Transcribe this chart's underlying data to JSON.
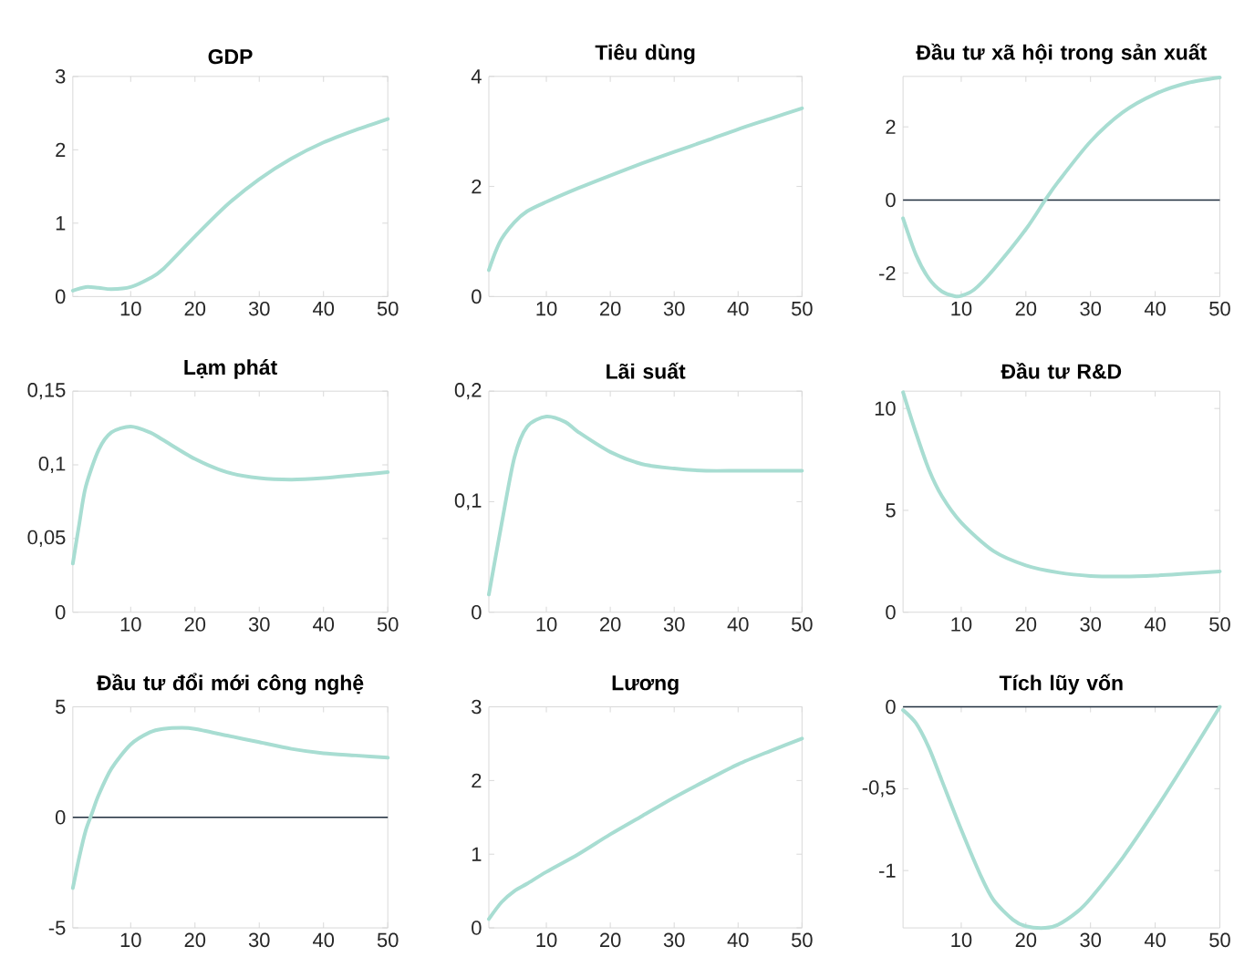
{
  "chart_data": [
    {
      "type": "line",
      "title": "GDP",
      "color": "#a8ddd2",
      "x": [
        1,
        3,
        5,
        7,
        10,
        13,
        15,
        20,
        25,
        30,
        35,
        40,
        45,
        50
      ],
      "values": [
        0.08,
        0.13,
        0.12,
        0.1,
        0.13,
        0.25,
        0.37,
        0.82,
        1.25,
        1.6,
        1.88,
        2.1,
        2.27,
        2.42
      ],
      "xlim": [
        1,
        50
      ],
      "ylim": [
        0,
        3
      ],
      "xticks": [
        10,
        20,
        30,
        40,
        50
      ],
      "yticks": [
        0,
        1,
        2,
        3
      ]
    },
    {
      "type": "line",
      "title": "Tiêu dùng",
      "color": "#a8ddd2",
      "x": [
        1,
        2,
        3,
        5,
        7,
        10,
        15,
        20,
        25,
        30,
        35,
        40,
        45,
        50
      ],
      "values": [
        0.48,
        0.8,
        1.05,
        1.35,
        1.55,
        1.72,
        1.97,
        2.2,
        2.42,
        2.63,
        2.83,
        3.04,
        3.23,
        3.42
      ],
      "xlim": [
        1,
        50
      ],
      "ylim": [
        0,
        4
      ],
      "xticks": [
        10,
        20,
        30,
        40,
        50
      ],
      "yticks": [
        0,
        2,
        4
      ]
    },
    {
      "type": "line",
      "title": "Đầu tư xã hội trong sản xuất",
      "color": "#a8ddd2",
      "x": [
        1,
        3,
        5,
        7,
        9,
        10,
        12,
        15,
        20,
        23,
        25,
        30,
        35,
        40,
        45,
        50
      ],
      "values": [
        -0.5,
        -1.5,
        -2.15,
        -2.5,
        -2.63,
        -2.62,
        -2.45,
        -1.9,
        -0.8,
        0.0,
        0.5,
        1.6,
        2.4,
        2.9,
        3.2,
        3.35
      ],
      "xlim": [
        1,
        50
      ],
      "ylim": [
        -2.64,
        3.38
      ],
      "xticks": [
        10,
        20,
        30,
        40,
        50
      ],
      "yticks": [
        -2,
        0,
        2
      ],
      "ref_lines": [
        {
          "axis": "y",
          "value": 0,
          "color": "#1f2d3d"
        }
      ]
    },
    {
      "type": "line",
      "title": "Lạm phát",
      "color": "#a8ddd2",
      "x": [
        1,
        2,
        3,
        5,
        7,
        10,
        13,
        15,
        20,
        25,
        30,
        35,
        40,
        45,
        50
      ],
      "values": [
        0.033,
        0.06,
        0.085,
        0.11,
        0.122,
        0.126,
        0.122,
        0.117,
        0.104,
        0.095,
        0.091,
        0.09,
        0.091,
        0.093,
        0.095
      ],
      "xlim": [
        1,
        50
      ],
      "ylim": [
        0,
        0.15
      ],
      "xticks": [
        10,
        20,
        30,
        40,
        50
      ],
      "yticks": [
        0,
        {
          "value": 0.05,
          "label": "0,05"
        },
        {
          "value": 0.1,
          "label": "0,1"
        },
        {
          "value": 0.15,
          "label": "0,15"
        }
      ]
    },
    {
      "type": "line",
      "title": "Lãi suất",
      "color": "#a8ddd2",
      "x": [
        1,
        3,
        5,
        7,
        10,
        13,
        15,
        20,
        25,
        30,
        35,
        40,
        45,
        50
      ],
      "values": [
        0.016,
        0.08,
        0.14,
        0.168,
        0.177,
        0.172,
        0.163,
        0.145,
        0.134,
        0.13,
        0.128,
        0.128,
        0.128,
        0.128
      ],
      "xlim": [
        1,
        50
      ],
      "ylim": [
        0,
        0.2
      ],
      "xticks": [
        10,
        20,
        30,
        40,
        50
      ],
      "yticks": [
        0,
        {
          "value": 0.1,
          "label": "0,1"
        },
        {
          "value": 0.2,
          "label": "0,2"
        }
      ]
    },
    {
      "type": "line",
      "title": "Đầu tư R&D",
      "color": "#a8ddd2",
      "x": [
        1,
        3,
        5,
        7,
        10,
        15,
        20,
        25,
        30,
        35,
        40,
        45,
        50
      ],
      "values": [
        10.8,
        8.8,
        7.0,
        5.7,
        4.4,
        3.0,
        2.3,
        1.95,
        1.78,
        1.75,
        1.8,
        1.9,
        2.0
      ],
      "xlim": [
        1,
        50
      ],
      "ylim": [
        0,
        10.85
      ],
      "xticks": [
        10,
        20,
        30,
        40,
        50
      ],
      "yticks": [
        0,
        5,
        10
      ]
    },
    {
      "type": "line",
      "title": "Đầu tư đổi mới công nghệ",
      "color": "#a8ddd2",
      "x": [
        1,
        2,
        3,
        4,
        5,
        7,
        10,
        13,
        15,
        18,
        20,
        25,
        30,
        35,
        40,
        45,
        50
      ],
      "values": [
        -3.2,
        -1.8,
        -0.6,
        0.2,
        1.0,
        2.2,
        3.3,
        3.85,
        4.0,
        4.05,
        4.0,
        3.7,
        3.4,
        3.1,
        2.9,
        2.8,
        2.7
      ],
      "xlim": [
        1,
        50
      ],
      "ylim": [
        -5,
        5
      ],
      "xticks": [
        10,
        20,
        30,
        40,
        50
      ],
      "yticks": [
        -5,
        0,
        5
      ],
      "ref_lines": [
        {
          "axis": "y",
          "value": 0,
          "color": "#1f2d3d"
        }
      ]
    },
    {
      "type": "line",
      "title": "Lương",
      "color": "#a8ddd2",
      "x": [
        1,
        3,
        5,
        7,
        10,
        15,
        20,
        25,
        30,
        35,
        40,
        45,
        50
      ],
      "values": [
        0.12,
        0.35,
        0.5,
        0.6,
        0.76,
        1.0,
        1.27,
        1.52,
        1.77,
        2.0,
        2.22,
        2.4,
        2.57
      ],
      "xlim": [
        1,
        50
      ],
      "ylim": [
        0,
        3
      ],
      "xticks": [
        10,
        20,
        30,
        40,
        50
      ],
      "yticks": [
        0,
        1,
        2,
        3
      ]
    },
    {
      "type": "line",
      "title": "Tích lũy vốn",
      "color": "#a8ddd2",
      "x": [
        1,
        3,
        5,
        7,
        10,
        13,
        15,
        18,
        20,
        23,
        25,
        28,
        30,
        35,
        40,
        45,
        50
      ],
      "values": [
        -0.02,
        -0.1,
        -0.25,
        -0.45,
        -0.75,
        -1.03,
        -1.18,
        -1.3,
        -1.34,
        -1.35,
        -1.33,
        -1.25,
        -1.17,
        -0.92,
        -0.63,
        -0.32,
        0.0
      ],
      "xlim": [
        1,
        50
      ],
      "ylim": [
        -1.35,
        0
      ],
      "xticks": [
        10,
        20,
        30,
        40,
        50
      ],
      "yticks": [
        {
          "value": -1,
          "label": "-1"
        },
        {
          "value": -0.5,
          "label": "-0,5"
        },
        0
      ],
      "ref_lines": [
        {
          "axis": "y",
          "value": 0,
          "color": "#1f2d3d"
        }
      ]
    }
  ]
}
